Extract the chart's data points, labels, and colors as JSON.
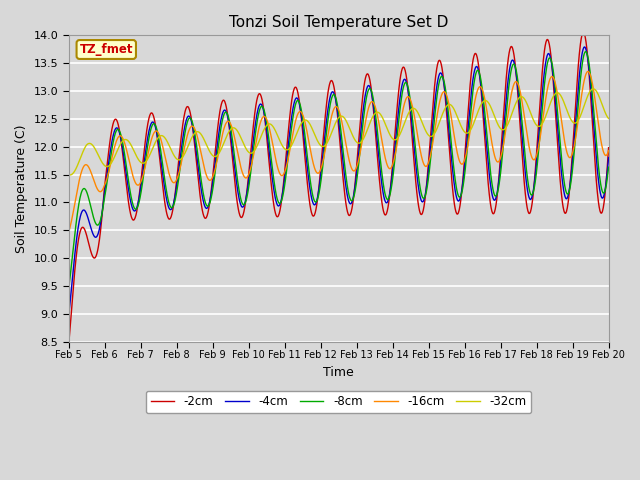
{
  "title": "Tonzi Soil Temperature Set D",
  "xlabel": "Time",
  "ylabel": "Soil Temperature (C)",
  "ylim": [
    8.5,
    14.0
  ],
  "legend_label": "TZ_fmet",
  "series_labels": [
    "-2cm",
    "-4cm",
    "-8cm",
    "-16cm",
    "-32cm"
  ],
  "series_colors": [
    "#cc0000",
    "#0000cc",
    "#00aa00",
    "#ff8800",
    "#cccc00"
  ],
  "background_color": "#d8d8d8",
  "plot_bg_color": "#d8d8d8",
  "x_tick_labels": [
    "Feb 5",
    "Feb 6",
    "Feb 7",
    "Feb 8",
    "Feb 9",
    "Feb 10",
    "Feb 11",
    "Feb 12",
    "Feb 13",
    "Feb 14",
    "Feb 15",
    "Feb 16",
    "Feb 17",
    "Feb 18",
    "Feb 19",
    "Feb 20"
  ],
  "n_days": 15,
  "pts_per_day": 96,
  "figwidth": 6.4,
  "figheight": 4.8,
  "dpi": 100
}
